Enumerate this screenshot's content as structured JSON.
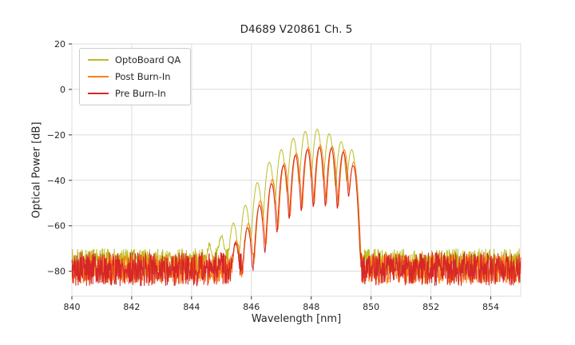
{
  "figure": {
    "background": "#ffffff",
    "text_color": "#262626"
  },
  "chart_data": {
    "type": "line",
    "title": "D4689 V20861 Ch. 5",
    "xlabel": "Wavelength [nm]",
    "ylabel": "Optical Power [dB]",
    "xlim": [
      840,
      855
    ],
    "ylim": [
      -91,
      20
    ],
    "xticks": [
      840,
      842,
      844,
      846,
      848,
      850,
      852,
      854
    ],
    "yticks": [
      -80,
      -60,
      -40,
      -20,
      0,
      20
    ],
    "grid": true,
    "grid_color": "#dcdcdc",
    "tick_color": "#333333",
    "legend_position": "upper-left",
    "sample_step_nm": 0.01,
    "series": [
      {
        "name": "OptoBoard QA",
        "color": "#bcbd22",
        "seed": 7,
        "noise_floor_db": -76,
        "noise_amplitude_db": 6,
        "mode_sigma_nm": 0.06,
        "modes": [
          [
            844.6,
            -70
          ],
          [
            845.0,
            -65
          ],
          [
            845.4,
            -59
          ],
          [
            845.8,
            -51
          ],
          [
            846.2,
            -41
          ],
          [
            846.6,
            -32
          ],
          [
            847.0,
            -26.5
          ],
          [
            847.4,
            -21.5
          ],
          [
            847.8,
            -18.5
          ],
          [
            848.2,
            -17.5
          ],
          [
            848.6,
            -19.5
          ],
          [
            849.0,
            -23
          ],
          [
            849.35,
            -26.5
          ]
        ]
      },
      {
        "name": "Post Burn-In",
        "color": "#ff7f0e",
        "seed": 13,
        "noise_floor_db": -79,
        "noise_amplitude_db": 6.5,
        "mode_sigma_nm": 0.055,
        "modes": [
          [
            845.5,
            -67
          ],
          [
            845.9,
            -59
          ],
          [
            846.3,
            -49
          ],
          [
            846.7,
            -39.5
          ],
          [
            847.1,
            -32.5
          ],
          [
            847.5,
            -28
          ],
          [
            847.9,
            -25.5
          ],
          [
            848.3,
            -24.5
          ],
          [
            848.7,
            -25
          ],
          [
            849.1,
            -26.5
          ],
          [
            849.42,
            -32
          ]
        ]
      },
      {
        "name": "Pre Burn-In",
        "color": "#d62728",
        "seed": 5,
        "noise_floor_db": -79,
        "noise_amplitude_db": 7.5,
        "mode_sigma_nm": 0.055,
        "modes": [
          [
            845.47,
            -68
          ],
          [
            845.87,
            -61
          ],
          [
            846.27,
            -51
          ],
          [
            846.67,
            -41.5
          ],
          [
            847.07,
            -33.5
          ],
          [
            847.47,
            -29
          ],
          [
            847.87,
            -26.5
          ],
          [
            848.27,
            -25.5
          ],
          [
            848.67,
            -26
          ],
          [
            849.07,
            -27.5
          ],
          [
            849.4,
            -33.5
          ]
        ]
      }
    ]
  }
}
